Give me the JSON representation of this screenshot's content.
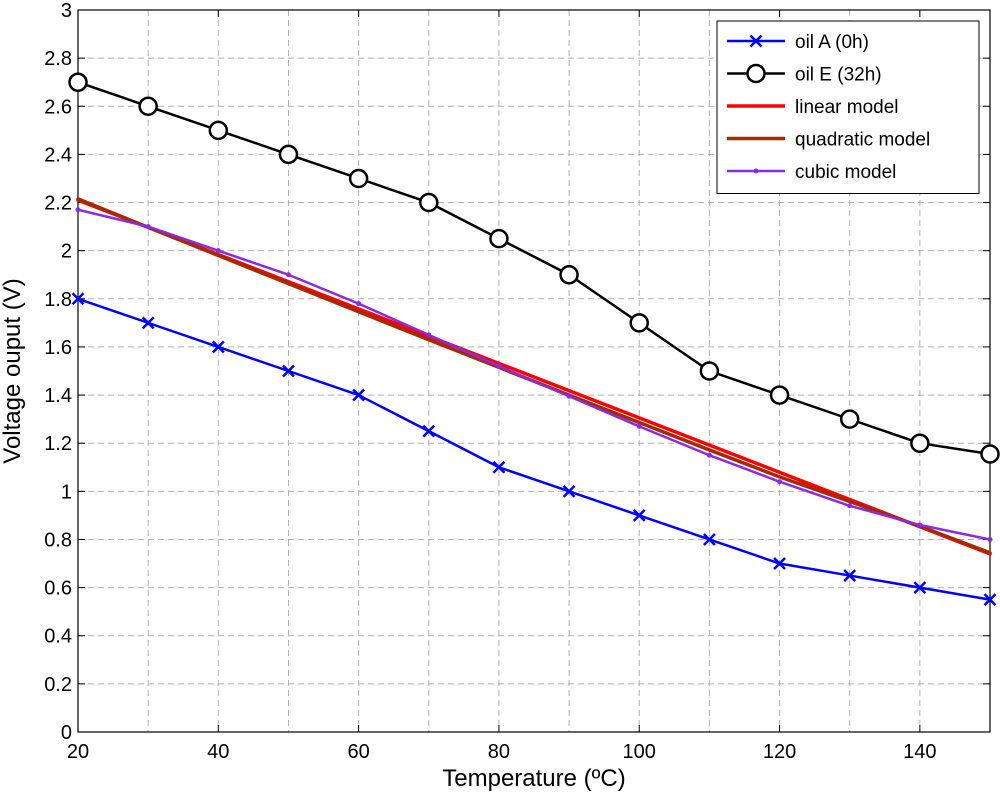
{
  "chart_data": {
    "type": "line",
    "title": "",
    "xlabel": "Temperature (ºC)",
    "ylabel": "Voltage ouput (V)",
    "xlim": [
      20,
      150
    ],
    "ylim": [
      0,
      3
    ],
    "grid": true,
    "legend_position": "top-right",
    "xticks": [
      20,
      40,
      60,
      80,
      100,
      120,
      140
    ],
    "xtick_labels": [
      "20",
      "40",
      "60",
      "80",
      "100",
      "120",
      "140"
    ],
    "yticks": [
      0,
      0.2,
      0.4,
      0.6,
      0.8,
      1,
      1.2,
      1.4,
      1.6,
      1.8,
      2,
      2.2,
      2.4,
      2.6,
      2.8,
      3
    ],
    "ytick_labels": [
      "0",
      "0.2",
      "0.4",
      "0.6",
      "0.8",
      "1",
      "1.2",
      "1.4",
      "1.6",
      "1.8",
      "2",
      "2.2",
      "2.4",
      "2.6",
      "2.8",
      "3"
    ],
    "series": [
      {
        "name": "oil A (0h)",
        "color": "#0000ff",
        "marker": "x",
        "x": [
          20,
          30,
          40,
          50,
          60,
          70,
          80,
          90,
          100,
          110,
          120,
          130,
          140,
          150
        ],
        "y": [
          1.8,
          1.7,
          1.6,
          1.5,
          1.4,
          1.25,
          1.1,
          1.0,
          0.9,
          0.8,
          0.7,
          0.65,
          0.6,
          0.55
        ]
      },
      {
        "name": "oil E (32h)",
        "color": "#000000",
        "marker": "o",
        "x": [
          20,
          30,
          40,
          50,
          60,
          70,
          80,
          90,
          100,
          110,
          120,
          130,
          140,
          150
        ],
        "y": [
          2.7,
          2.6,
          2.5,
          2.4,
          2.3,
          2.2,
          2.05,
          1.9,
          1.7,
          1.5,
          1.4,
          1.3,
          1.2,
          1.155
        ]
      },
      {
        "name": "linear model",
        "color": "#ff0000",
        "marker": "none",
        "x": [
          20,
          150
        ],
        "y": [
          2.21,
          0.74
        ]
      },
      {
        "name": "quadratic model",
        "color": "#a52a00",
        "marker": "none",
        "x": [
          20,
          30,
          40,
          50,
          60,
          70,
          80,
          90,
          100,
          110,
          120,
          130,
          140,
          150
        ],
        "y": [
          2.215,
          2.097,
          1.98,
          1.863,
          1.746,
          1.63,
          1.515,
          1.4,
          1.286,
          1.172,
          1.06,
          0.958,
          0.855,
          0.745
        ]
      },
      {
        "name": "cubic model",
        "color": "#8a2be2",
        "marker": "dot",
        "x": [
          20,
          30,
          40,
          50,
          60,
          70,
          80,
          90,
          100,
          110,
          120,
          130,
          140,
          150
        ],
        "y": [
          2.17,
          2.1,
          2.0,
          1.9,
          1.78,
          1.65,
          1.52,
          1.395,
          1.27,
          1.15,
          1.04,
          0.94,
          0.86,
          0.8
        ]
      }
    ]
  }
}
